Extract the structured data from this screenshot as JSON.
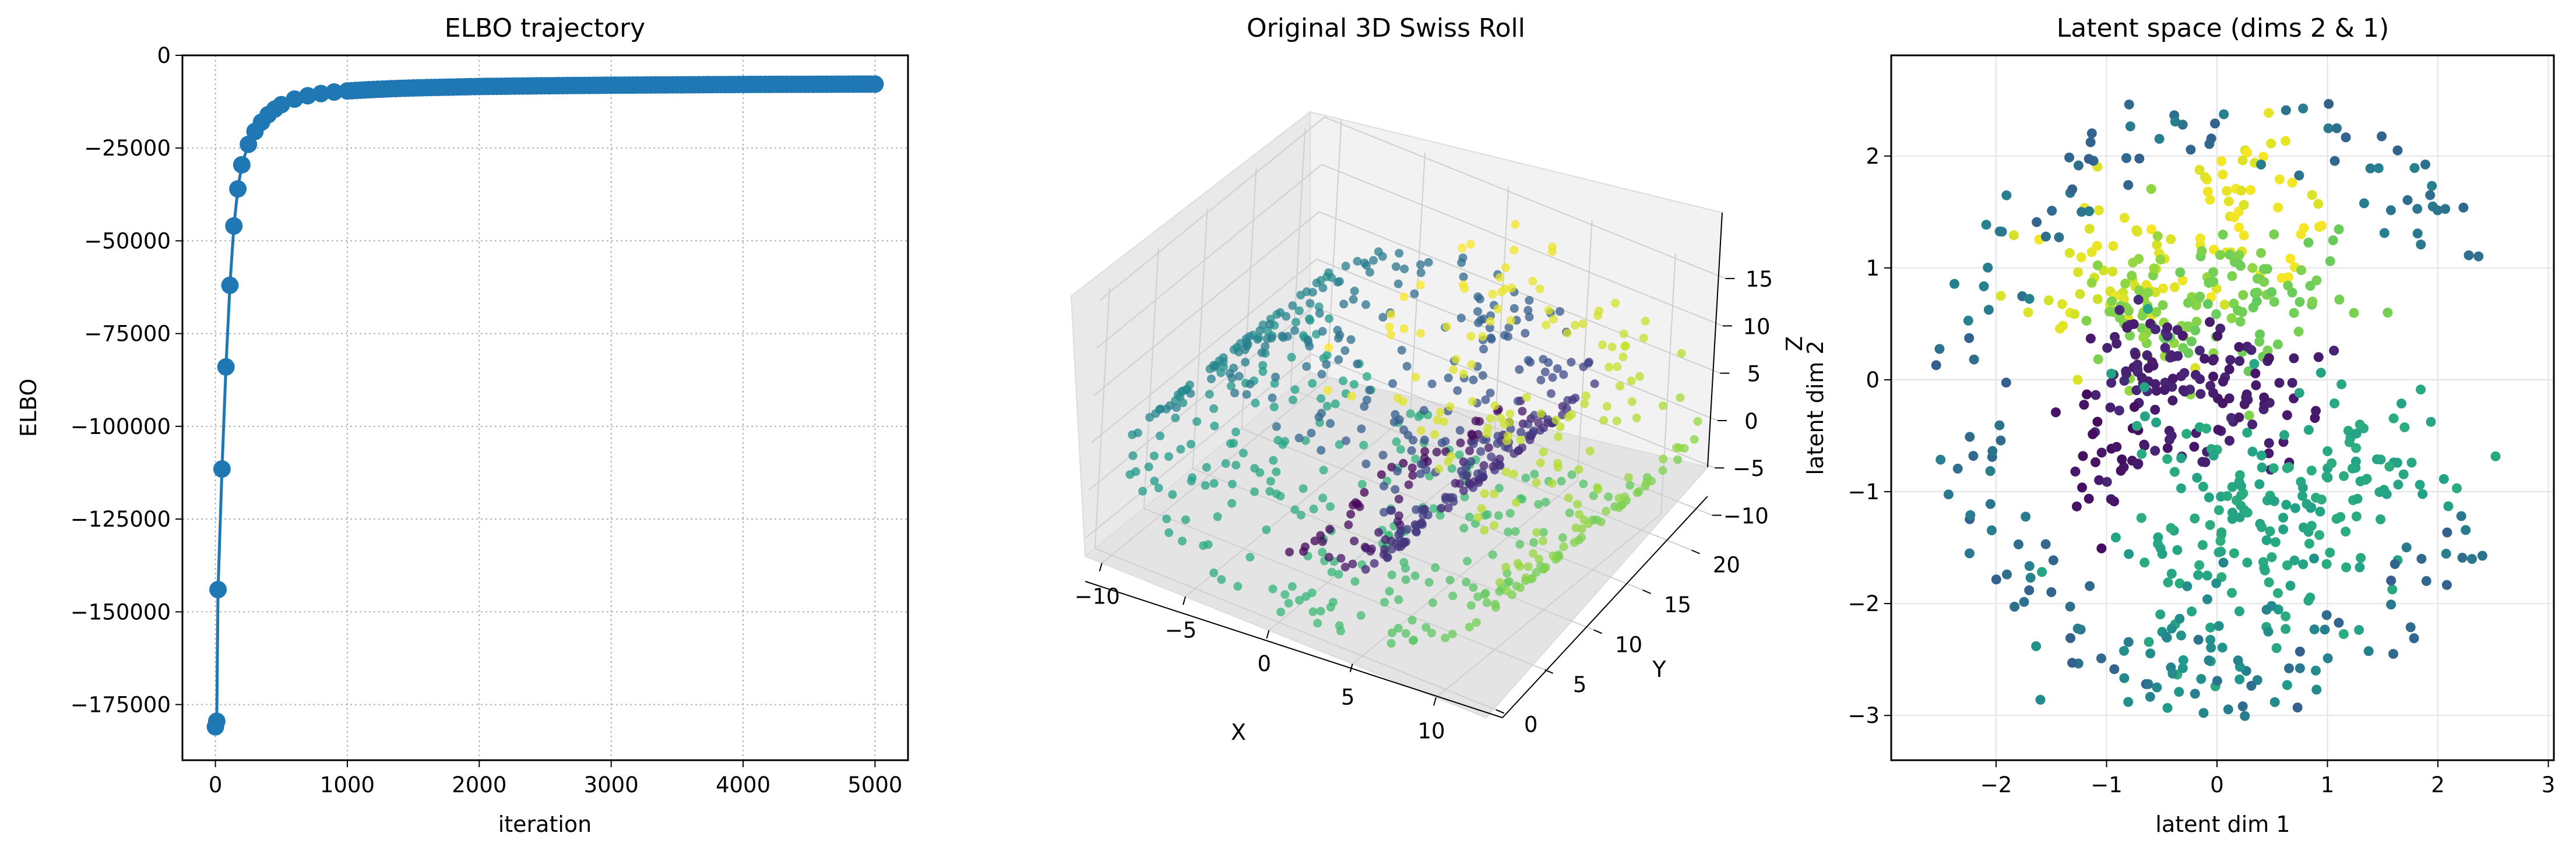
{
  "chart_data": [
    {
      "type": "line",
      "title": "ELBO trajectory",
      "xlabel": "iteration",
      "ylabel": "ELBO",
      "xlim": [
        -250,
        5250
      ],
      "ylim": [
        -190000,
        0
      ],
      "xticks": [
        0,
        1000,
        2000,
        3000,
        4000,
        5000
      ],
      "xtick_labels": [
        "0",
        "1000",
        "2000",
        "3000",
        "4000",
        "5000"
      ],
      "yticks": [
        0,
        -25000,
        -50000,
        -75000,
        -100000,
        -125000,
        -150000,
        -175000
      ],
      "ytick_labels": [
        "0",
        "−25000",
        "−50000",
        "−75000",
        "−100000",
        "−125000",
        "−150000",
        "−175000"
      ],
      "grid": true,
      "color": "#1f77b4",
      "series": [
        {
          "x": [
            0,
            10,
            20,
            50,
            80,
            110,
            140,
            170,
            200,
            250,
            300,
            350,
            400,
            450,
            500,
            600,
            700,
            800,
            900,
            1000,
            1200,
            1400,
            1600,
            1800,
            2000,
            2500,
            3000,
            3500,
            4000,
            4500,
            5000
          ],
          "y": [
            -181000,
            -179500,
            -144000,
            -111500,
            -84000,
            -62000,
            -46000,
            -36000,
            -29500,
            -24000,
            -20500,
            -18000,
            -16000,
            -14500,
            -13300,
            -11800,
            -10900,
            -10300,
            -9900,
            -9600,
            -9200,
            -8900,
            -8700,
            -8550,
            -8400,
            -8200,
            -8050,
            -7950,
            -7850,
            -7800,
            -7750
          ]
        }
      ]
    },
    {
      "type": "scatter",
      "subtype": "3d",
      "title": "Original 3D Swiss Roll",
      "xlabel": "X",
      "ylabel": "Y",
      "zlabel": "Z",
      "xticks": [
        -10,
        -5,
        0,
        5,
        10
      ],
      "xtick_labels": [
        "−10",
        "−5",
        "0",
        "5",
        "10"
      ],
      "yticks": [
        0,
        5,
        10,
        15,
        20
      ],
      "ytick_labels": [
        "0",
        "5",
        "10",
        "15",
        "20"
      ],
      "zticks": [
        -10,
        -5,
        0,
        5,
        10,
        15
      ],
      "ztick_labels": [
        "−10",
        "−5",
        "0",
        "5",
        "10",
        "15"
      ],
      "xlim": [
        -11,
        13
      ],
      "ylim": [
        -1,
        22
      ],
      "zlim": [
        -12,
        15.5
      ],
      "grid": true,
      "colormap": "viridis",
      "points_description": "swiss roll, x=t*cos(t), z=t*sin(t), t in [4.7,14.1], y uniform 0-21, colored by t",
      "n_points": 800
    },
    {
      "type": "scatter",
      "title": "Latent space (dims 2 & 1)",
      "xlabel": "latent dim 1",
      "ylabel": "latent dim 2",
      "xlim": [
        -2.95,
        3.05
      ],
      "ylim": [
        -3.4,
        2.9
      ],
      "xticks": [
        -2,
        -1,
        0,
        1,
        2,
        3
      ],
      "xtick_labels": [
        "−2",
        "−1",
        "0",
        "1",
        "2",
        "3"
      ],
      "yticks": [
        -3,
        -2,
        -1,
        0,
        1,
        2
      ],
      "ytick_labels": [
        "−3",
        "−2",
        "−1",
        "0",
        "1",
        "2"
      ],
      "grid": true,
      "colormap": "viridis",
      "points_description": "latent embedding of swiss roll points, clustered by color, roughly within radius 3",
      "n_points": 800
    }
  ]
}
